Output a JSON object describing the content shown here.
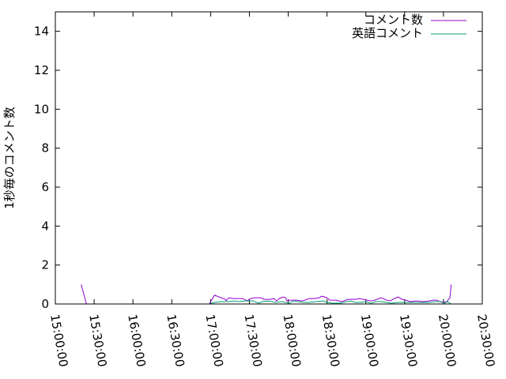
{
  "chart_data": {
    "type": "line",
    "title": "",
    "xlabel": "",
    "ylabel": "1秒毎のコメント数",
    "xlim": [
      "15:00:00",
      "20:30:00"
    ],
    "ylim": [
      0,
      15
    ],
    "xticks": [
      "15:00:00",
      "15:30:00",
      "16:00:00",
      "16:30:00",
      "17:00:00",
      "17:30:00",
      "18:00:00",
      "18:30:00",
      "19:00:00",
      "19:30:00",
      "20:00:00",
      "20:30:00"
    ],
    "yticks": [
      0,
      2,
      4,
      6,
      8,
      10,
      12,
      14
    ],
    "grid": false,
    "legend_position": "top-right",
    "series": [
      {
        "name": "コメント数",
        "color": "#9400d3",
        "points": [
          [
            "15:20",
            1.0
          ],
          [
            "15:24",
            0
          ],
          [
            "16:59",
            0
          ],
          [
            "17:03",
            0.45
          ],
          [
            "17:11",
            0.25
          ],
          [
            "17:12",
            0.17
          ],
          [
            "17:14",
            0.32
          ],
          [
            "17:18",
            0.28
          ],
          [
            "17:25",
            0.28
          ],
          [
            "17:28",
            0.16
          ],
          [
            "17:31",
            0.28
          ],
          [
            "17:34",
            0.32
          ],
          [
            "17:39",
            0.32
          ],
          [
            "17:41",
            0.24
          ],
          [
            "17:46",
            0.24
          ],
          [
            "17:49",
            0.28
          ],
          [
            "17:51",
            0.16
          ],
          [
            "17:53",
            0.28
          ],
          [
            "17:56",
            0.36
          ],
          [
            "17:58",
            0.32
          ],
          [
            "17:59",
            0.16
          ],
          [
            "18:02",
            0.2
          ],
          [
            "18:07",
            0.2
          ],
          [
            "18:10",
            0.16
          ],
          [
            "18:13",
            0.2
          ],
          [
            "18:16",
            0.28
          ],
          [
            "18:20",
            0.28
          ],
          [
            "18:24",
            0.32
          ],
          [
            "18:26",
            0.4
          ],
          [
            "18:30",
            0.32
          ],
          [
            "18:32",
            0.2
          ],
          [
            "18:37",
            0.2
          ],
          [
            "18:41",
            0.12
          ],
          [
            "18:43",
            0.16
          ],
          [
            "18:46",
            0.24
          ],
          [
            "18:52",
            0.24
          ],
          [
            "18:55",
            0.28
          ],
          [
            "18:58",
            0.24
          ],
          [
            "19:01",
            0.2
          ],
          [
            "19:04",
            0.16
          ],
          [
            "19:07",
            0.2
          ],
          [
            "19:10",
            0.28
          ],
          [
            "19:12",
            0.32
          ],
          [
            "19:16",
            0.2
          ],
          [
            "19:19",
            0.16
          ],
          [
            "19:22",
            0.28
          ],
          [
            "19:25",
            0.36
          ],
          [
            "19:28",
            0.24
          ],
          [
            "19:31",
            0.2
          ],
          [
            "19:34",
            0.12
          ],
          [
            "19:40",
            0.16
          ],
          [
            "19:43",
            0.12
          ],
          [
            "19:46",
            0.12
          ],
          [
            "19:49",
            0.16
          ],
          [
            "19:52",
            0.2
          ],
          [
            "19:55",
            0.2
          ],
          [
            "19:57",
            0.12
          ],
          [
            "19:59",
            0.08
          ],
          [
            "20:00",
            0.12
          ],
          [
            "20:02",
            0.08
          ],
          [
            "20:03",
            0.16
          ],
          [
            "20:05",
            0.32
          ],
          [
            "20:06",
            1.0
          ]
        ]
      },
      {
        "name": "英語コメント",
        "color": "#009e73",
        "points": [
          [
            "16:59",
            0
          ],
          [
            "17:03",
            0.08
          ],
          [
            "17:08",
            0.12
          ],
          [
            "17:14",
            0.12
          ],
          [
            "17:18",
            0.16
          ],
          [
            "17:22",
            0.12
          ],
          [
            "17:27",
            0.16
          ],
          [
            "17:33",
            0.16
          ],
          [
            "17:37",
            0.04
          ],
          [
            "17:40",
            0.12
          ],
          [
            "17:45",
            0.16
          ],
          [
            "17:50",
            0.08
          ],
          [
            "17:55",
            0.12
          ],
          [
            "17:58",
            0.08
          ],
          [
            "18:01",
            0.04
          ],
          [
            "18:04",
            0.16
          ],
          [
            "18:08",
            0.12
          ],
          [
            "18:12",
            0.08
          ],
          [
            "18:16",
            0.08
          ],
          [
            "18:22",
            0.12
          ],
          [
            "18:27",
            0.16
          ],
          [
            "18:30",
            0.08
          ],
          [
            "18:34",
            0.04
          ],
          [
            "18:40",
            0.04
          ],
          [
            "18:45",
            0.12
          ],
          [
            "18:48",
            0.16
          ],
          [
            "18:52",
            0.08
          ],
          [
            "18:56",
            0.08
          ],
          [
            "19:00",
            0.12
          ],
          [
            "19:04",
            0.04
          ],
          [
            "19:08",
            0.12
          ],
          [
            "19:12",
            0.12
          ],
          [
            "19:16",
            0.08
          ],
          [
            "19:20",
            0.04
          ],
          [
            "19:25",
            0.08
          ],
          [
            "19:31",
            0.08
          ],
          [
            "19:37",
            0.08
          ],
          [
            "19:43",
            0.08
          ],
          [
            "19:49",
            0.08
          ],
          [
            "19:53",
            0.12
          ],
          [
            "19:58",
            0.12
          ],
          [
            "20:01",
            0.04
          ],
          [
            "20:03",
            0.12
          ],
          [
            "20:05",
            0.04
          ],
          [
            "20:06",
            0
          ]
        ]
      }
    ]
  }
}
